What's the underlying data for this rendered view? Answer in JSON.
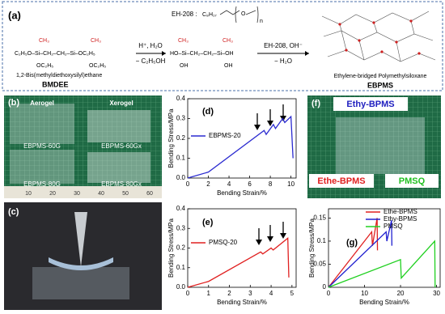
{
  "scheme": {
    "panel": "(a)",
    "eh208": "EH-208 :",
    "eh208_formula": "C₈H₁₇",
    "eh208_o": "O",
    "eh208_n": "n",
    "bmdee_ch3": "CH₃",
    "bmdee_main": "C₂H₅O–Si–CH₂–CH₂–Si–OC₂H₅",
    "bmdee_oc2h5": "OC₂H₅",
    "bmdee_name": "1,2-Bis(methyldiethoxysilyl)ethane",
    "bmdee_abbr": "BMDEE",
    "step1_top": "H⁺, H₂O",
    "step1_bottom": "− C₂H₅OH",
    "mid_ch3": "CH₃",
    "mid_main": "HO–Si–CH₂–CH₂–Si–OH",
    "mid_oh": "OH",
    "step2_top": "EH-208, OH⁻",
    "step2_bottom": "− H₂O",
    "product_name": "Ethylene-bridged Polymethylsiloxane",
    "product_abbr": "EBPMS"
  },
  "photo_b": {
    "panel": "(b)",
    "labels": [
      "Aerogel",
      "Xerogel",
      "EBPMS-60G",
      "EBPMS-60Gx",
      "EBPMS-80G",
      "EBPMS-80Gx"
    ],
    "ruler": [
      "10",
      "20",
      "30",
      "40",
      "50",
      "60"
    ]
  },
  "photo_c": {
    "panel": "(c)"
  },
  "photo_f": {
    "panel": "(f)",
    "labels": [
      "Ethy-BPMS",
      "Ethe-BPMS",
      "PMSQ"
    ]
  },
  "chart_data": [
    {
      "type": "line",
      "panel": "(d)",
      "y_label": "Bending Stress/MPa",
      "x_label": "Bending Strain/%",
      "series": [
        {
          "name": "EBPMS-20",
          "color": "#2b2bd0",
          "x": [
            0,
            2,
            7.4,
            7.6,
            8.3,
            8.5,
            9.2,
            9.4,
            10,
            10.2
          ],
          "values": [
            0,
            0.03,
            0.24,
            0.22,
            0.27,
            0.25,
            0.3,
            0.28,
            0.31,
            0.1
          ]
        }
      ],
      "xlim": [
        0,
        10.5
      ],
      "xticks": [
        0,
        2,
        4,
        6,
        8,
        10
      ],
      "ylim": [
        0,
        0.4
      ],
      "yticks": [
        {
          "value": 0,
          "label": "0.0"
        },
        0.1,
        0.2,
        0.3,
        0.4
      ]
    },
    {
      "type": "line",
      "panel": "(e)",
      "y_label": "Bending Stress/MPa",
      "x_label": "Bending Strain/%",
      "series": [
        {
          "name": "PMSQ-20",
          "color": "#e02020",
          "x": [
            0,
            1,
            3.5,
            3.6,
            4,
            4.1,
            4.8,
            4.85
          ],
          "values": [
            0,
            0.03,
            0.18,
            0.17,
            0.2,
            0.19,
            0.25,
            0.05
          ]
        }
      ],
      "xlim": [
        0,
        5.2
      ],
      "xticks": [
        0,
        1,
        2,
        3,
        4,
        5
      ],
      "ylim": [
        0,
        0.4
      ],
      "yticks": [
        {
          "value": 0,
          "label": "0.0"
        },
        0.1,
        0.2,
        0.3,
        0.4
      ]
    },
    {
      "type": "line",
      "panel": "(g)",
      "y_label": "Bending Stress/MPa",
      "x_label": "Bending Strain/%",
      "series": [
        {
          "name": "Ethe-BPMS",
          "color": "#e02020",
          "x": [
            0,
            12,
            12.2,
            13.5,
            13.6
          ],
          "values": [
            0,
            0.12,
            0.09,
            0.15,
            0.08
          ]
        },
        {
          "name": "Ethy-BPMS",
          "color": "#2020d0",
          "x": [
            0,
            16,
            16.2,
            17.5,
            17.6
          ],
          "values": [
            0,
            0.12,
            0.1,
            0.145,
            0.09
          ]
        },
        {
          "name": "PMSQ",
          "color": "#20d020",
          "x": [
            0,
            20,
            20.2,
            29.5,
            29.6
          ],
          "values": [
            0,
            0.06,
            0.02,
            0.1,
            0
          ]
        }
      ],
      "xlim": [
        0,
        31
      ],
      "xticks": [
        0,
        10,
        20,
        30
      ],
      "ylim": [
        0,
        0.17
      ],
      "yticks": [
        0,
        0.05,
        0.1,
        0.15
      ]
    }
  ]
}
